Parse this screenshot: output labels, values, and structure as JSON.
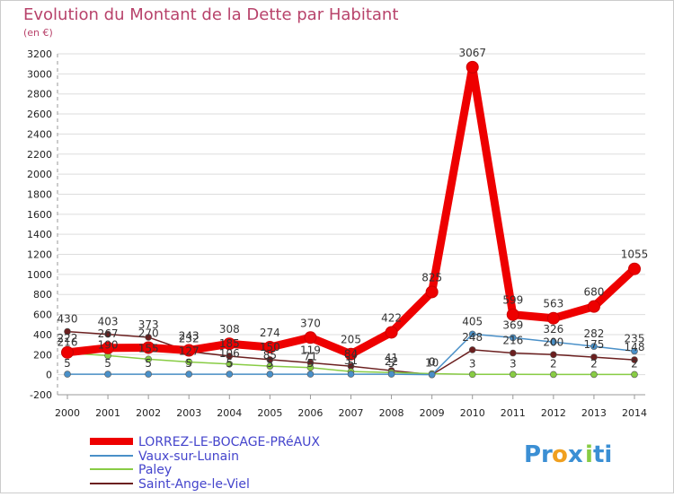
{
  "chart_data": {
    "type": "line",
    "title": "Evolution du Montant de la Dette par Habitant",
    "subtitle": "(en €)",
    "xlabel": "",
    "ylabel": "",
    "ylim": [
      -200,
      3200
    ],
    "y_ticks": [
      -200,
      0,
      200,
      400,
      600,
      800,
      1000,
      1200,
      1400,
      1600,
      1800,
      2000,
      2200,
      2400,
      2600,
      2800,
      3000,
      3200
    ],
    "categories": [
      "2000",
      "2001",
      "2002",
      "2003",
      "2004",
      "2005",
      "2006",
      "2007",
      "2008",
      "2009",
      "2010",
      "2011",
      "2012",
      "2013",
      "2014"
    ],
    "grid": "horizontal",
    "legend_position": "bottom-left",
    "series": [
      {
        "name": "LORREZ-LE-BOCAGE-PRéAUX",
        "color": "#ee0000",
        "values": [
          222,
          267,
          270,
          243,
          308,
          274,
          370,
          205,
          422,
          825,
          3067,
          599,
          563,
          680,
          1055
        ],
        "labels": [
          "222",
          "267",
          "270",
          "243",
          "308",
          "274",
          "370",
          "205",
          "422",
          "825",
          "3067",
          "599",
          "563",
          "680",
          "1055"
        ]
      },
      {
        "name": "Vaux-sur-Lunain",
        "color": "#4a90c8",
        "values": [
          5,
          5,
          5,
          5,
          5,
          5,
          5,
          5,
          5,
          0,
          405,
          369,
          326,
          282,
          235
        ],
        "labels": [
          "5",
          "5",
          "5",
          "5",
          "5",
          "5",
          "5",
          "5",
          "5",
          "0",
          "405",
          "369",
          "326",
          "282",
          "235"
        ]
      },
      {
        "name": "Paley",
        "color": "#88cc44",
        "values": [
          216,
          190,
          155,
          127,
          106,
          85,
          71,
          31,
          22,
          10,
          3,
          3,
          2,
          2,
          2
        ],
        "labels": [
          "216",
          "190",
          "155",
          "127",
          "106",
          "85",
          "71",
          "31",
          "22",
          "10",
          "3",
          "3",
          "2",
          "2",
          "2"
        ]
      },
      {
        "name": "Saint-Ange-le-Viel",
        "color": "#6b1f1f",
        "values": [
          430,
          403,
          373,
          232,
          185,
          150,
          119,
          84,
          41,
          0,
          248,
          216,
          200,
          175,
          148
        ],
        "labels": [
          "430",
          "403",
          "373",
          "232",
          "185",
          "150",
          "119",
          "84",
          "41",
          "0",
          "248",
          "216",
          "200",
          "175",
          "148"
        ]
      }
    ]
  },
  "logo": {
    "text_1": "Pr",
    "text_2": "o",
    "text_3": "x",
    "text_4": "i",
    "text_5": "ti"
  }
}
